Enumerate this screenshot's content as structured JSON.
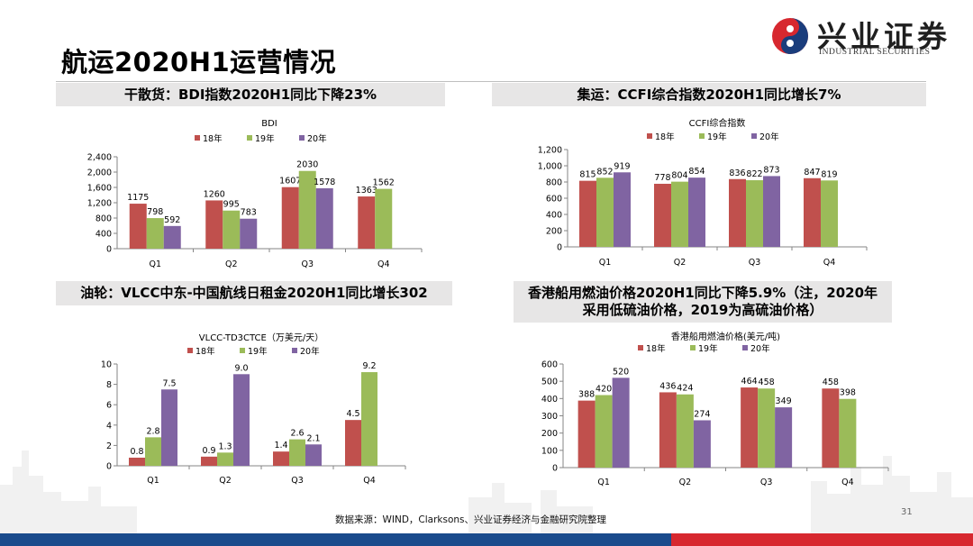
{
  "page": {
    "title": "航运2020H1运营情况",
    "page_number": "31",
    "source": "数据来源：WIND，Clarksons、兴业证券经济与金融研究院整理"
  },
  "logo": {
    "name_cn": "兴业证券",
    "name_en": "INDUSTRIAL SECURITIES"
  },
  "colors": {
    "s18": "#c0504d",
    "s19": "#9bbb59",
    "s20": "#8064a2",
    "brand_red": "#d7282f",
    "brand_blue": "#1a3d7c"
  },
  "sections": {
    "dry_bulk": "干散货：BDI指数2020H1同比下降23%",
    "container": "集运：CCFI综合指数2020H1同比增长7%",
    "tanker": "油轮：VLCC中东-中国航线日租金2020H1同比增长302",
    "bunker": "香港船用燃油价格2020H1同比下降5.9%（注，2020年采用低硫油价格，2019为高硫油价格）"
  },
  "chart_data": [
    {
      "id": "bdi",
      "type": "bar",
      "title": "BDI",
      "categories": [
        "Q1",
        "Q2",
        "Q3",
        "Q4"
      ],
      "series": [
        {
          "name": "18年",
          "values": [
            1175,
            1260,
            1607,
            1363
          ],
          "labels": [
            "1175",
            "1260",
            "1607",
            "1363"
          ]
        },
        {
          "name": "19年",
          "values": [
            798,
            995,
            2030,
            1562
          ],
          "labels": [
            "798",
            "995",
            "2030",
            "1562"
          ]
        },
        {
          "name": "20年",
          "values": [
            592,
            783,
            1578,
            null
          ],
          "labels": [
            "592",
            "783",
            "1578",
            ""
          ]
        }
      ],
      "ylim": [
        0,
        2400
      ],
      "yticks": [
        "0",
        "400",
        "800",
        "1,200",
        "1,600",
        "2,000",
        "2,400"
      ]
    },
    {
      "id": "ccfi",
      "type": "bar",
      "title": "CCFI综合指数",
      "categories": [
        "Q1",
        "Q2",
        "Q3",
        "Q4"
      ],
      "series": [
        {
          "name": "18年",
          "values": [
            815,
            778,
            836,
            847
          ],
          "labels": [
            "815",
            "778",
            "836",
            "847"
          ]
        },
        {
          "name": "19年",
          "values": [
            852,
            804,
            822,
            819
          ],
          "labels": [
            "852",
            "804",
            "822",
            "819"
          ]
        },
        {
          "name": "20年",
          "values": [
            919,
            854,
            873,
            null
          ],
          "labels": [
            "919",
            "854",
            "873",
            ""
          ]
        }
      ],
      "ylim": [
        0,
        1200
      ],
      "yticks": [
        "0",
        "200",
        "400",
        "600",
        "800",
        "1,000",
        "1,200"
      ]
    },
    {
      "id": "vlcc",
      "type": "bar",
      "title": "VLCC-TD3CTCE（万美元/天）",
      "categories": [
        "Q1",
        "Q2",
        "Q3",
        "Q4"
      ],
      "series": [
        {
          "name": "18年",
          "values": [
            0.8,
            0.9,
            1.4,
            4.5
          ],
          "labels": [
            "0.8",
            "0.9",
            "1.4",
            "4.5"
          ]
        },
        {
          "name": "19年",
          "values": [
            2.8,
            1.3,
            2.6,
            9.2
          ],
          "labels": [
            "2.8",
            "1.3",
            "2.6",
            "9.2"
          ]
        },
        {
          "name": "20年",
          "values": [
            7.5,
            9.0,
            2.1,
            null
          ],
          "labels": [
            "7.5",
            "9.0",
            "2.1",
            ""
          ]
        }
      ],
      "ylim": [
        0,
        10
      ],
      "yticks": [
        "0",
        "2",
        "4",
        "6",
        "8",
        "10"
      ]
    },
    {
      "id": "bunker",
      "type": "bar",
      "title": "香港船用燃油价格(美元/吨)",
      "categories": [
        "Q1",
        "Q2",
        "Q3",
        "Q4"
      ],
      "series": [
        {
          "name": "18年",
          "values": [
            388,
            436,
            464,
            458
          ],
          "labels": [
            "388",
            "436",
            "464",
            "458"
          ]
        },
        {
          "name": "19年",
          "values": [
            420,
            424,
            458,
            398
          ],
          "labels": [
            "420",
            "424",
            "458",
            "398"
          ]
        },
        {
          "name": "20年",
          "values": [
            520,
            274,
            349,
            null
          ],
          "labels": [
            "520",
            "274",
            "349",
            ""
          ]
        }
      ],
      "ylim": [
        0,
        600
      ],
      "yticks": [
        "0",
        "100",
        "200",
        "300",
        "400",
        "500",
        "600"
      ]
    }
  ]
}
